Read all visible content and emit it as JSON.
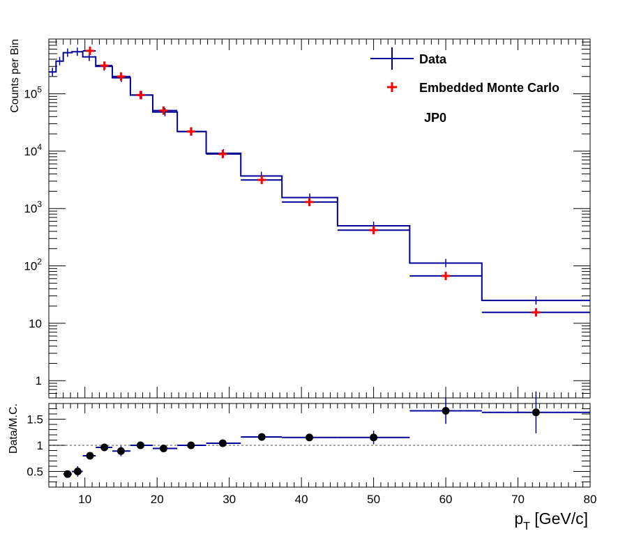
{
  "chart_data": [
    {
      "type": "histogram",
      "panel": "main",
      "ylabel": "Counts per Bin",
      "yscale": "log",
      "xlim": [
        5,
        80
      ],
      "ylim": [
        0.5,
        900000
      ],
      "ytick_labels": [
        {
          "value": 1,
          "label": "1"
        },
        {
          "value": 10,
          "label": "10"
        },
        {
          "value": 100,
          "label": "10",
          "sup": "2"
        },
        {
          "value": 1000,
          "label": "10",
          "sup": "3"
        },
        {
          "value": 10000,
          "label": "10",
          "sup": "4"
        },
        {
          "value": 100000,
          "label": "10",
          "sup": "5"
        }
      ],
      "annotation": "JP0",
      "legend": {
        "placement": "top-right",
        "entries": [
          {
            "label": "Data",
            "color": "#000099",
            "marker": "cross-line"
          },
          {
            "label": "Embedded Monte Carlo",
            "color": "#ff0000",
            "marker": "plus"
          }
        ]
      },
      "series": [
        {
          "name": "Data",
          "color": "#000099",
          "style": "step",
          "bins": [
            {
              "x0": 5,
              "x1": 6,
              "y": 240000
            },
            {
              "x0": 6,
              "x1": 7,
              "y": 370000
            },
            {
              "x0": 7,
              "x1": 8.2,
              "y": 520000
            },
            {
              "x0": 8.2,
              "x1": 9.7,
              "y": 540000
            },
            {
              "x0": 9.7,
              "x1": 11.5,
              "y": 440000
            },
            {
              "x0": 11.5,
              "x1": 13.8,
              "y": 300000
            },
            {
              "x0": 13.8,
              "x1": 16.3,
              "y": 190000
            },
            {
              "x0": 16.3,
              "x1": 19.4,
              "y": 95000
            },
            {
              "x0": 19.4,
              "x1": 22.8,
              "y": 48000
            },
            {
              "x0": 22.8,
              "x1": 26.8,
              "y": 22000
            },
            {
              "x0": 26.8,
              "x1": 31.6,
              "y": 9200
            },
            {
              "x0": 31.6,
              "x1": 37.3,
              "y": 3700
            },
            {
              "x0": 37.3,
              "x1": 45,
              "y": 1550
            },
            {
              "x0": 45,
              "x1": 55,
              "y": 500
            },
            {
              "x0": 55,
              "x1": 65,
              "y": 112
            },
            {
              "x0": 65,
              "x1": 80,
              "y": 25
            }
          ]
        },
        {
          "name": "Embedded Monte Carlo",
          "color": "#ff0000",
          "style": "step-points",
          "bins": [
            {
              "x0": 9.7,
              "x1": 11.5,
              "x": 10.7,
              "y": 560000
            },
            {
              "x0": 11.5,
              "x1": 13.8,
              "x": 12.7,
              "y": 310000
            },
            {
              "x0": 13.8,
              "x1": 16.3,
              "x": 15.0,
              "y": 200000
            },
            {
              "x0": 16.3,
              "x1": 19.4,
              "x": 17.7,
              "y": 95000
            },
            {
              "x0": 19.4,
              "x1": 22.8,
              "x": 20.9,
              "y": 51000
            },
            {
              "x0": 22.8,
              "x1": 26.8,
              "x": 24.7,
              "y": 22000
            },
            {
              "x0": 26.8,
              "x1": 31.6,
              "x": 29.1,
              "y": 8900
            },
            {
              "x0": 31.6,
              "x1": 37.3,
              "x": 34.5,
              "y": 3150
            },
            {
              "x0": 37.3,
              "x1": 45,
              "x": 41.1,
              "y": 1300
            },
            {
              "x0": 45,
              "x1": 55,
              "x": 50,
              "y": 420
            },
            {
              "x0": 55,
              "x1": 65,
              "x": 60,
              "y": 67
            },
            {
              "x0": 65,
              "x1": 80,
              "x": 72.5,
              "y": 15.5
            }
          ]
        }
      ]
    },
    {
      "type": "scatter",
      "panel": "ratio",
      "xlabel": "p",
      "xlabel_sub": "T",
      "xlabel_units": " [GeV/c]",
      "ylabel": "Data/M.C.",
      "xlim": [
        5,
        80
      ],
      "ylim": [
        0.2,
        1.8
      ],
      "reference_line": 1,
      "xticks": [
        10,
        20,
        30,
        40,
        50,
        60,
        70,
        80
      ],
      "yticks": [
        0.5,
        1,
        1.5
      ],
      "series": [
        {
          "name": "Data/M.C.",
          "color": "#000000",
          "points": [
            {
              "x": 7.6,
              "x0": 7,
              "x1": 8.2,
              "y": 0.45,
              "err": 0.05
            },
            {
              "x": 9.0,
              "x0": 8.2,
              "x1": 9.7,
              "y": 0.5,
              "err": 0.1
            },
            {
              "x": 10.7,
              "x0": 9.7,
              "x1": 11.5,
              "y": 0.8,
              "err": 0.07
            },
            {
              "x": 12.7,
              "x0": 11.5,
              "x1": 13.8,
              "y": 0.96,
              "err": 0.06
            },
            {
              "x": 15.0,
              "x0": 13.8,
              "x1": 16.3,
              "y": 0.89,
              "err": 0.1
            },
            {
              "x": 17.7,
              "x0": 16.3,
              "x1": 19.4,
              "y": 1.0,
              "err": 0.03
            },
            {
              "x": 20.9,
              "x0": 19.4,
              "x1": 22.8,
              "y": 0.94,
              "err": 0.03
            },
            {
              "x": 24.7,
              "x0": 22.8,
              "x1": 26.8,
              "y": 1.0,
              "err": 0.03
            },
            {
              "x": 29.1,
              "x0": 26.8,
              "x1": 31.6,
              "y": 1.04,
              "err": 0.03
            },
            {
              "x": 34.5,
              "x0": 31.6,
              "x1": 37.3,
              "y": 1.16,
              "err": 0.03
            },
            {
              "x": 41.1,
              "x0": 37.3,
              "x1": 45,
              "y": 1.15,
              "err": 0.06
            },
            {
              "x": 50.0,
              "x0": 45,
              "x1": 55,
              "y": 1.15,
              "err": 0.13
            },
            {
              "x": 60.0,
              "x0": 55,
              "x1": 65,
              "y": 1.66,
              "err": 0.25
            },
            {
              "x": 72.5,
              "x0": 65,
              "x1": 80,
              "y": 1.63,
              "err": 0.4
            }
          ]
        }
      ]
    }
  ]
}
